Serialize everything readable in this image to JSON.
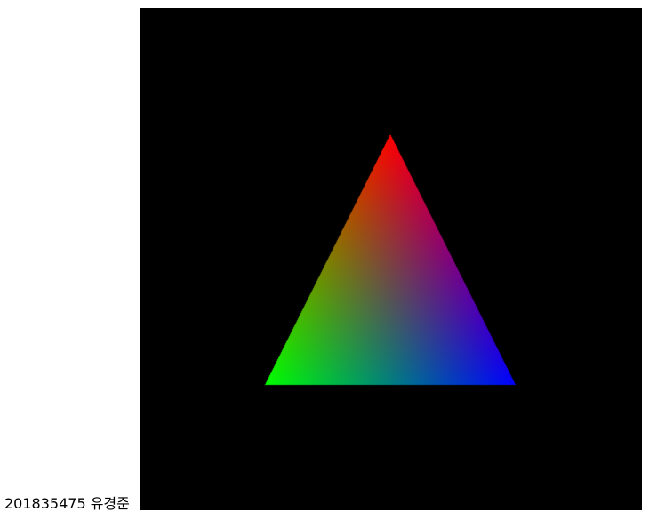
{
  "caption": {
    "text": "201835475 유경준"
  },
  "canvas": {
    "background": "#000000",
    "triangle": {
      "vertex_colors": {
        "top": "#ff0000",
        "bottom_left": "#00ff00",
        "bottom_right": "#0000ff"
      }
    }
  }
}
